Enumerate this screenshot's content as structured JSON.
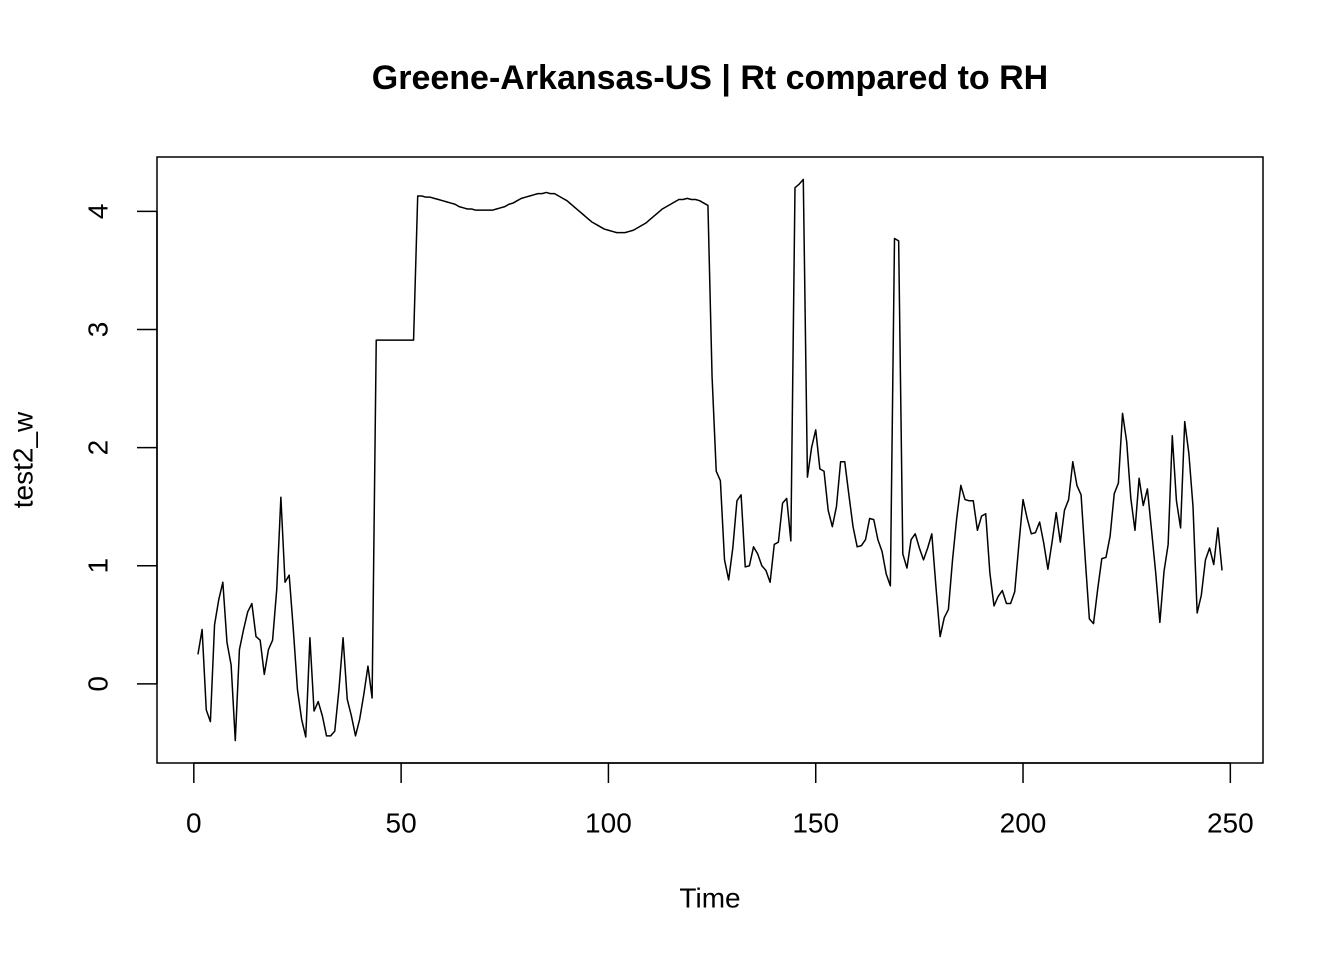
{
  "chart_data": {
    "type": "line",
    "title": "Greene-Arkansas-US | Rt compared to RH",
    "x_label": "Time",
    "y_label": "test2_w",
    "x": [
      1,
      2,
      3,
      4,
      5,
      6,
      7,
      8,
      9,
      10,
      11,
      12,
      13,
      14,
      15,
      16,
      17,
      18,
      19,
      20,
      21,
      22,
      23,
      24,
      25,
      26,
      27,
      28,
      29,
      30,
      31,
      32,
      33,
      34,
      35,
      36,
      37,
      38,
      39,
      40,
      41,
      42,
      43,
      44,
      45,
      46,
      47,
      48,
      49,
      50,
      51,
      52,
      53,
      54,
      55,
      56,
      57,
      58,
      59,
      60,
      61,
      62,
      63,
      64,
      65,
      66,
      67,
      68,
      69,
      70,
      71,
      72,
      73,
      74,
      75,
      76,
      77,
      78,
      79,
      80,
      81,
      82,
      83,
      84,
      85,
      86,
      87,
      88,
      89,
      90,
      91,
      92,
      93,
      94,
      95,
      96,
      97,
      98,
      99,
      100,
      101,
      102,
      103,
      104,
      105,
      106,
      107,
      108,
      109,
      110,
      111,
      112,
      113,
      114,
      115,
      116,
      117,
      118,
      119,
      120,
      121,
      122,
      123,
      124,
      125,
      126,
      127,
      128,
      129,
      130,
      131,
      132,
      133,
      134,
      135,
      136,
      137,
      138,
      139,
      140,
      141,
      142,
      143,
      144,
      145,
      146,
      147,
      148,
      149,
      150,
      151,
      152,
      153,
      154,
      155,
      156,
      157,
      158,
      159,
      160,
      161,
      162,
      163,
      164,
      165,
      166,
      167,
      168,
      169,
      170,
      171,
      172,
      173,
      174,
      175,
      176,
      177,
      178,
      179,
      180,
      181,
      182,
      183,
      184,
      185,
      186,
      187,
      188,
      189,
      190,
      191,
      192,
      193,
      194,
      195,
      196,
      197,
      198,
      199,
      200,
      201,
      202,
      203,
      204,
      205,
      206,
      207,
      208,
      209,
      210,
      211,
      212,
      213,
      214,
      215,
      216,
      217,
      218,
      219,
      220,
      221,
      222,
      223,
      224,
      225,
      226,
      227,
      228,
      229,
      230,
      231,
      232,
      233,
      234,
      235,
      236,
      237,
      238,
      239,
      240,
      241,
      242,
      243,
      244,
      245,
      246,
      247,
      248
    ],
    "series": [
      {
        "name": "test2_w",
        "color": "#000000",
        "values": [
          0.25,
          0.46,
          -0.22,
          -0.32,
          0.5,
          0.71,
          0.86,
          0.35,
          0.16,
          -0.48,
          0.29,
          0.46,
          0.61,
          0.68,
          0.4,
          0.37,
          0.08,
          0.29,
          0.37,
          0.8,
          1.58,
          0.86,
          0.92,
          0.46,
          -0.05,
          -0.3,
          -0.45,
          0.39,
          -0.23,
          -0.15,
          -0.27,
          -0.44,
          -0.44,
          -0.4,
          -0.05,
          0.39,
          -0.13,
          -0.27,
          -0.44,
          -0.3,
          -0.09,
          0.15,
          -0.12,
          2.91,
          2.91,
          2.91,
          2.91,
          2.91,
          2.91,
          2.91,
          2.91,
          2.91,
          2.91,
          4.13,
          4.13,
          4.12,
          4.12,
          4.11,
          4.1,
          4.09,
          4.08,
          4.07,
          4.06,
          4.04,
          4.03,
          4.02,
          4.02,
          4.01,
          4.01,
          4.01,
          4.01,
          4.01,
          4.02,
          4.03,
          4.04,
          4.06,
          4.07,
          4.09,
          4.11,
          4.12,
          4.13,
          4.14,
          4.15,
          4.15,
          4.16,
          4.15,
          4.15,
          4.13,
          4.11,
          4.09,
          4.06,
          4.03,
          4.0,
          3.97,
          3.94,
          3.91,
          3.89,
          3.87,
          3.85,
          3.84,
          3.83,
          3.82,
          3.82,
          3.82,
          3.83,
          3.84,
          3.86,
          3.88,
          3.9,
          3.93,
          3.96,
          3.99,
          4.02,
          4.04,
          4.06,
          4.08,
          4.1,
          4.1,
          4.11,
          4.1,
          4.1,
          4.09,
          4.07,
          4.05,
          2.6,
          1.8,
          1.72,
          1.05,
          0.88,
          1.15,
          1.55,
          1.6,
          0.99,
          1.0,
          1.16,
          1.1,
          1.0,
          0.96,
          0.86,
          1.18,
          1.2,
          1.53,
          1.57,
          1.21,
          4.2,
          4.23,
          4.27,
          1.75,
          2.0,
          2.15,
          1.82,
          1.8,
          1.47,
          1.33,
          1.5,
          1.88,
          1.88,
          1.6,
          1.33,
          1.16,
          1.17,
          1.22,
          1.4,
          1.39,
          1.22,
          1.12,
          0.93,
          0.83,
          3.77,
          3.75,
          1.1,
          0.98,
          1.22,
          1.27,
          1.15,
          1.05,
          1.15,
          1.27,
          0.82,
          0.4,
          0.56,
          0.63,
          1.05,
          1.4,
          1.68,
          1.56,
          1.55,
          1.55,
          1.3,
          1.42,
          1.44,
          0.94,
          0.66,
          0.74,
          0.79,
          0.68,
          0.68,
          0.78,
          1.18,
          1.56,
          1.4,
          1.27,
          1.28,
          1.37,
          1.19,
          0.97,
          1.2,
          1.45,
          1.2,
          1.47,
          1.56,
          1.88,
          1.68,
          1.6,
          1.06,
          0.55,
          0.51,
          0.8,
          1.06,
          1.07,
          1.25,
          1.61,
          1.7,
          2.29,
          2.05,
          1.57,
          1.3,
          1.74,
          1.51,
          1.65,
          1.3,
          0.94,
          0.52,
          0.95,
          1.18,
          2.1,
          1.55,
          1.32,
          2.22,
          1.95,
          1.5,
          0.6,
          0.75,
          1.05,
          1.15,
          1.01,
          1.32,
          0.96
        ]
      }
    ],
    "xlim": [
      -8.88,
      257.88
    ],
    "xticks": [
      0,
      50,
      100,
      150,
      200,
      250
    ],
    "ylim": [
      -0.67,
      4.46
    ],
    "yticks": [
      0,
      1,
      2,
      3,
      4
    ]
  }
}
